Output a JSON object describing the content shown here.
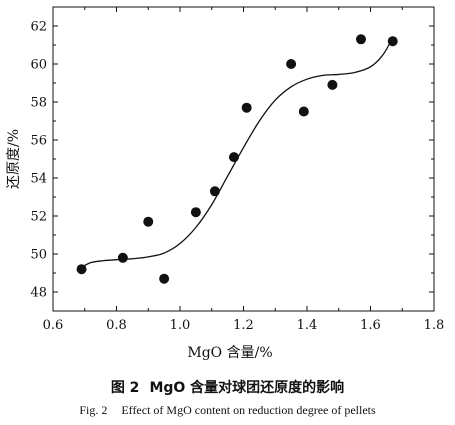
{
  "chart_data": {
    "type": "scatter",
    "xlabel": "MgO 含量/%",
    "ylabel": "还原度/%",
    "xlim": [
      0.6,
      1.8
    ],
    "ylim": [
      47,
      63
    ],
    "xticks": [
      "0.6",
      "0.8",
      "1.0",
      "1.2",
      "1.4",
      "1.6",
      "1.8"
    ],
    "yticks": [
      "48",
      "50",
      "52",
      "54",
      "56",
      "58",
      "60",
      "62"
    ],
    "grid": false,
    "points": [
      {
        "x": 0.69,
        "y": 49.2
      },
      {
        "x": 0.82,
        "y": 49.8
      },
      {
        "x": 0.9,
        "y": 51.7
      },
      {
        "x": 0.95,
        "y": 48.7
      },
      {
        "x": 1.05,
        "y": 52.2
      },
      {
        "x": 1.11,
        "y": 53.3
      },
      {
        "x": 1.17,
        "y": 55.1
      },
      {
        "x": 1.21,
        "y": 57.7
      },
      {
        "x": 1.35,
        "y": 60.0
      },
      {
        "x": 1.39,
        "y": 57.5
      },
      {
        "x": 1.48,
        "y": 58.9
      },
      {
        "x": 1.57,
        "y": 61.3
      },
      {
        "x": 1.67,
        "y": 61.2
      }
    ],
    "fit_curve": [
      {
        "x": 0.69,
        "y": 49.3
      },
      {
        "x": 0.72,
        "y": 49.55
      },
      {
        "x": 0.76,
        "y": 49.65
      },
      {
        "x": 0.8,
        "y": 49.7
      },
      {
        "x": 0.85,
        "y": 49.75
      },
      {
        "x": 0.9,
        "y": 49.85
      },
      {
        "x": 0.95,
        "y": 50.05
      },
      {
        "x": 1.0,
        "y": 50.55
      },
      {
        "x": 1.05,
        "y": 51.4
      },
      {
        "x": 1.1,
        "y": 52.6
      },
      {
        "x": 1.15,
        "y": 54.1
      },
      {
        "x": 1.2,
        "y": 55.6
      },
      {
        "x": 1.25,
        "y": 57.0
      },
      {
        "x": 1.3,
        "y": 58.1
      },
      {
        "x": 1.35,
        "y": 58.8
      },
      {
        "x": 1.4,
        "y": 59.2
      },
      {
        "x": 1.45,
        "y": 59.4
      },
      {
        "x": 1.5,
        "y": 59.45
      },
      {
        "x": 1.55,
        "y": 59.55
      },
      {
        "x": 1.6,
        "y": 59.85
      },
      {
        "x": 1.64,
        "y": 60.5
      },
      {
        "x": 1.67,
        "y": 61.4
      }
    ]
  },
  "caption": {
    "cn_number": "图 2",
    "cn_text": "MgO 含量对球团还原度的影响",
    "en_number": "Fig. 2",
    "en_text": "Effect of MgO content on reduction degree of pellets"
  }
}
